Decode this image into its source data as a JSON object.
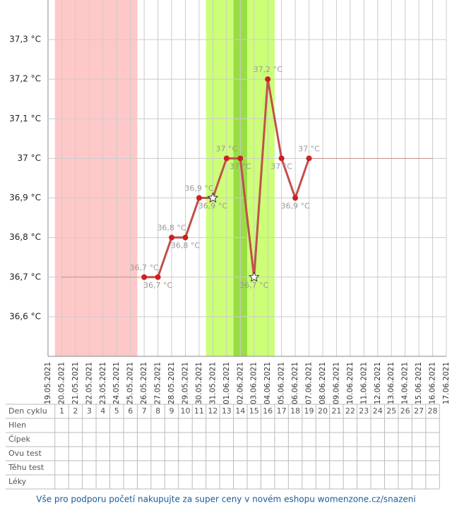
{
  "chart_data": {
    "type": "line",
    "categories": [
      "19.05.2021",
      "20.05.2021",
      "21.05.2021",
      "22.05.2021",
      "23.05.2021",
      "24.05.2021",
      "25.05.2021",
      "26.05.2021",
      "27.05.2021",
      "28.05.2021",
      "29.05.2021",
      "30.05.2021",
      "31.05.2021",
      "01.06.2021",
      "02.06.2021",
      "03.06.2021",
      "04.06.2021",
      "05.06.2021",
      "06.06.2021",
      "07.06.2021",
      "08.06.2021",
      "09.06.2021",
      "10.06.2021",
      "11.06.2021",
      "12.06.2021",
      "13.06.2021",
      "14.06.2021",
      "15.06.2021",
      "16.06.2021",
      "17.06.2021"
    ],
    "series": [
      {
        "color": "#c0504d",
        "point_color": "#cc2020",
        "values": [
          null,
          null,
          null,
          null,
          null,
          null,
          null,
          36.7,
          36.7,
          36.8,
          36.8,
          36.9,
          36.9,
          37,
          37,
          36.7,
          37.2,
          37,
          36.9,
          37,
          null,
          null,
          null,
          null,
          null,
          null,
          null,
          null,
          null,
          null
        ],
        "value_labels": [
          null,
          null,
          null,
          null,
          null,
          null,
          null,
          "36,7 °C",
          "36,7 °C",
          "36,8 °C",
          "36,8 °C",
          "36,9 °C",
          "36,9 °C",
          "37 °C",
          "37 °C",
          "36,7 °C",
          "37,2 °C",
          "37 °C",
          "36,9 °C",
          "37 °C",
          null,
          null,
          null,
          null,
          null,
          null,
          null,
          null,
          null,
          null
        ],
        "markers": [
          null,
          null,
          null,
          null,
          null,
          null,
          null,
          "circle",
          "circle",
          "circle",
          "circle",
          "circle",
          "star",
          "circle",
          "circle",
          "star",
          "circle",
          "circle",
          "circle",
          "circle",
          null,
          null,
          null,
          null,
          null,
          null,
          null,
          null,
          null,
          null
        ]
      },
      {
        "color": "#c0504d",
        "dotted": true,
        "values": [
          null,
          36.7,
          36.7,
          36.7,
          36.7,
          36.7,
          36.7,
          36.7,
          null,
          null,
          null,
          null,
          null,
          null,
          null,
          null,
          null,
          null,
          null,
          null,
          null,
          null,
          null,
          null,
          null,
          null,
          null,
          null,
          null,
          null
        ]
      },
      {
        "color": "#c0504d",
        "dotted": true,
        "values": [
          null,
          null,
          null,
          null,
          null,
          null,
          null,
          null,
          null,
          null,
          null,
          null,
          null,
          null,
          null,
          null,
          null,
          null,
          null,
          37,
          37,
          37,
          37,
          37,
          37,
          37,
          37,
          37,
          37,
          null
        ]
      }
    ],
    "bands": [
      {
        "start": 1,
        "end": 6,
        "color": "#ffc8c8"
      },
      {
        "start": 12,
        "end": 16,
        "color": "#ccff77"
      },
      {
        "start": 14,
        "end": 14,
        "color": "#99dd44"
      }
    ],
    "ylim": [
      36.5,
      37.4
    ],
    "yticks": [
      {
        "value": 36.6,
        "label": "36,6 °C"
      },
      {
        "value": 36.7,
        "label": "36,7 °C"
      },
      {
        "value": 36.8,
        "label": "36,8 °C"
      },
      {
        "value": 36.9,
        "label": "36,9 °C"
      },
      {
        "value": 37,
        "label": "37 °C"
      },
      {
        "value": 37.1,
        "label": "37,1 °C"
      },
      {
        "value": 37.2,
        "label": "37,2 °C"
      },
      {
        "value": 37.3,
        "label": "37,3 °C"
      }
    ],
    "grid": true
  },
  "table": {
    "rows": [
      {
        "label": "Den cyklu",
        "cells": [
          1,
          2,
          3,
          4,
          5,
          6,
          7,
          8,
          9,
          10,
          11,
          12,
          13,
          14,
          15,
          16,
          17,
          18,
          19,
          20,
          21,
          22,
          23,
          24,
          25,
          26,
          27,
          28
        ]
      },
      {
        "label": "Hlen"
      },
      {
        "label": "Čípek"
      },
      {
        "label": "Ovu test"
      },
      {
        "label": "Těhu test"
      },
      {
        "label": "Léky"
      }
    ]
  },
  "footer": "Vše pro podporu početí nakupujte za super ceny v novém eshopu womenzone.cz/snazeni"
}
